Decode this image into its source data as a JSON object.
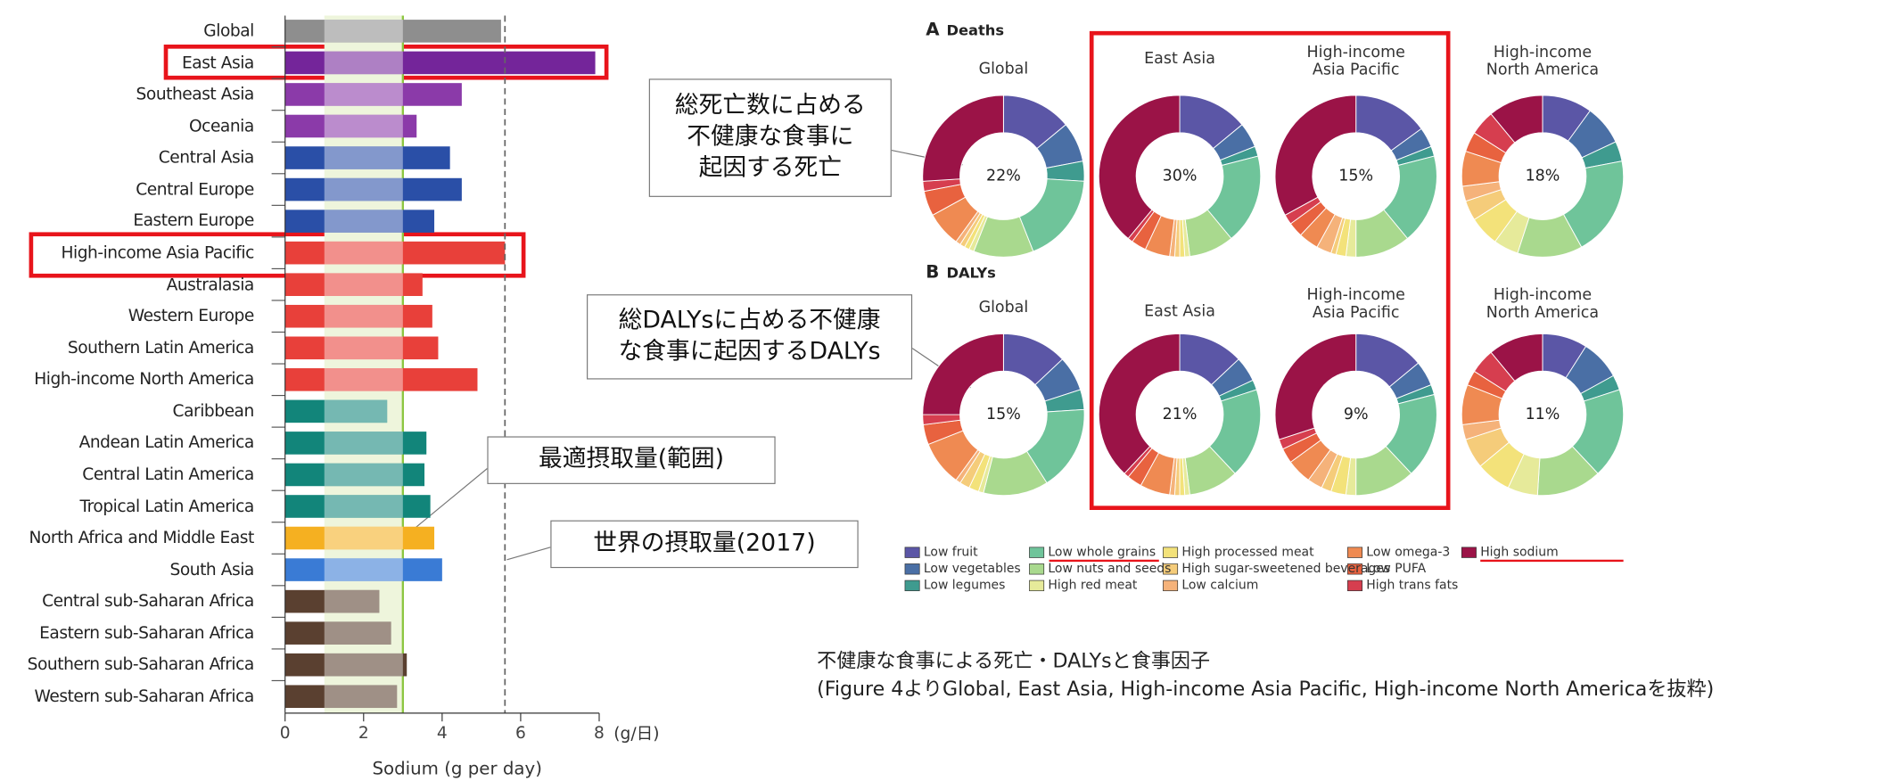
{
  "chart_data": [
    {
      "type": "hbar",
      "xlabel": "Sodium (g per day)",
      "x_unit": "(g/日)",
      "xlim": [
        0,
        8
      ],
      "xticks": [
        0,
        2,
        4,
        6,
        8
      ],
      "optimal_range": [
        1,
        3
      ],
      "reference_line": 5.6,
      "categories": [
        "Global",
        "East Asia",
        "Southeast Asia",
        "Oceania",
        "Central Asia",
        "Central Europe",
        "Eastern Europe",
        "High-income Asia Pacific",
        "Australasia",
        "Western Europe",
        "Southern Latin America",
        "High-income North America",
        "Caribbean",
        "Andean Latin America",
        "Central Latin America",
        "Tropical Latin America",
        "North Africa and Middle East",
        "South Asia",
        "Central sub-Saharan Africa",
        "Eastern sub-Saharan Africa",
        "Southern sub-Saharan Africa",
        "Western sub-Saharan Africa"
      ],
      "values": [
        5.5,
        7.9,
        4.5,
        3.35,
        4.2,
        4.5,
        3.8,
        5.6,
        3.5,
        3.75,
        3.9,
        4.9,
        2.6,
        3.6,
        3.55,
        3.7,
        3.8,
        4.0,
        2.4,
        2.7,
        3.1,
        2.85
      ],
      "colors": [
        "#8e8e8e",
        "#74259a",
        "#8b3aa9",
        "#8b3aa9",
        "#2a4fa7",
        "#2a4fa7",
        "#2a4fa7",
        "#e8403a",
        "#e8403a",
        "#e8403a",
        "#e8403a",
        "#e8403a",
        "#12857a",
        "#12857a",
        "#12857a",
        "#12857a",
        "#f5b021",
        "#3a7bd5",
        "#5a4030",
        "#5a4030",
        "#5a4030",
        "#5a4030"
      ],
      "annotations": [
        "最適摂取量(範囲)",
        "世界の摂取量(2017)"
      ]
    },
    {
      "type": "donut",
      "factors": [
        "Low fruit",
        "Low vegetables",
        "Low legumes",
        "Low whole grains",
        "Low nuts and seeds",
        "High red meat",
        "High processed meat",
        "High sugar-sweetened beverages",
        "Low calcium",
        "Low omega-3",
        "Low PUFA",
        "High trans fats",
        "High sodium"
      ],
      "colors": [
        "#5b56a6",
        "#4a6fa5",
        "#3f9b8f",
        "#6fc49a",
        "#a9d98e",
        "#e6ea9a",
        "#f3e27a",
        "#f5cc7a",
        "#f5b27a",
        "#ef8a52",
        "#e8623f",
        "#d63e4f",
        "#9b1347"
      ],
      "panels": [
        {
          "letter": "A",
          "title": "Deaths",
          "donuts": [
            {
              "title": "Global",
              "center_value": 22,
              "center_label": "22%",
              "values": [
                14,
                8,
                4,
                18,
                12,
                1,
                1,
                1,
                1,
                7,
                5,
                2,
                26
              ]
            },
            {
              "title": "East Asia",
              "center_value": 30,
              "center_label": "30%",
              "values": [
                14,
                5,
                2,
                18,
                9,
                1,
                1,
                1,
                1,
                5,
                3,
                1,
                39
              ]
            },
            {
              "title": "High-income\nAsia Pacific",
              "center_value": 15,
              "center_label": "15%",
              "values": [
                15,
                4,
                2,
                18,
                11,
                2,
                2,
                1,
                3,
                4,
                3,
                2,
                33
              ]
            },
            {
              "title": "High-income\nNorth America",
              "center_value": 18,
              "center_label": "18%",
              "values": [
                10,
                8,
                4,
                20,
                13,
                5,
                6,
                4,
                3,
                7,
                4,
                5,
                11
              ]
            }
          ]
        },
        {
          "letter": "B",
          "title": "DALYs",
          "donuts": [
            {
              "title": "Global",
              "center_value": 15,
              "center_label": "15%",
              "values": [
                13,
                7,
                4,
                17,
                13,
                1,
                2,
                2,
                1,
                9,
                4,
                2,
                25
              ]
            },
            {
              "title": "East Asia",
              "center_value": 21,
              "center_label": "21%",
              "values": [
                13,
                5,
                2,
                18,
                10,
                1,
                1,
                1,
                1,
                6,
                3,
                1,
                38
              ]
            },
            {
              "title": "High-income\nAsia Pacific",
              "center_value": 9,
              "center_label": "9%",
              "values": [
                14,
                5,
                2,
                17,
                12,
                2,
                3,
                2,
                3,
                5,
                3,
                2,
                30
              ]
            },
            {
              "title": "High-income\nNorth America",
              "center_value": 11,
              "center_label": "11%",
              "values": [
                9,
                8,
                3,
                18,
                13,
                6,
                7,
                6,
                3,
                8,
                3,
                5,
                11
              ]
            }
          ]
        }
      ],
      "annotations": [
        "総死亡数に占める\n不健康な食事に\n起因する死亡",
        "総DALYsに占める不健康\nな食事に起因するDALYs"
      ]
    }
  ],
  "caption": {
    "title": "不健康な食事による死亡・DALYsと食事因子",
    "note": "(Figure 4よりGlobal, East Asia, High-income Asia Pacific, High-income North Americaを抜粋)"
  }
}
